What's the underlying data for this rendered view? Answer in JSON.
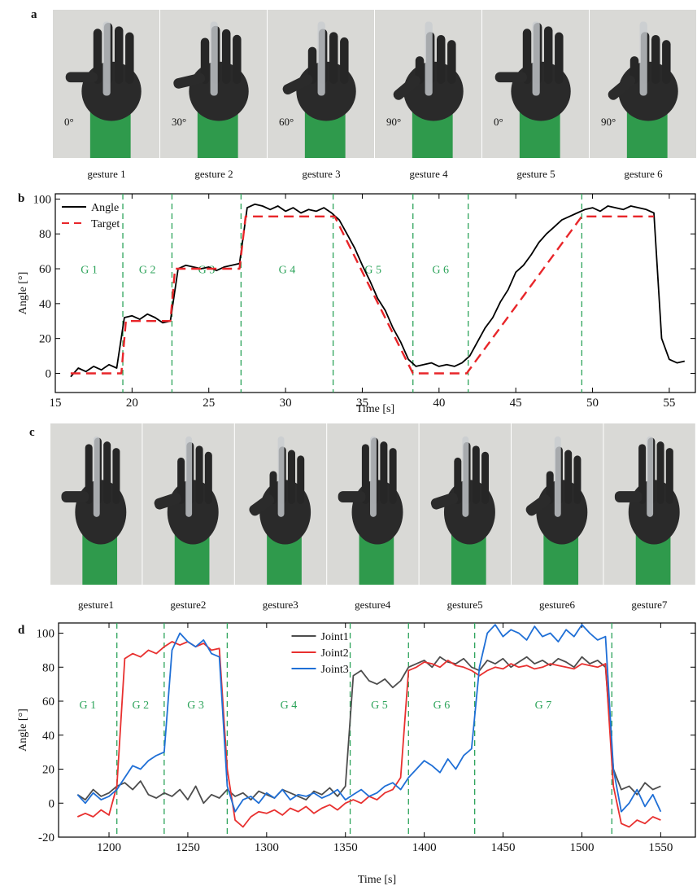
{
  "panels": [
    {
      "label": "a",
      "captions": [
        "gesture 1",
        "gesture 2",
        "gesture 3",
        "gesture 4",
        "gesture 5",
        "gesture 6"
      ],
      "angles": [
        "0°",
        "30°",
        "60°",
        "90°",
        "0°",
        "90°"
      ]
    },
    {
      "label": "b"
    },
    {
      "label": "c",
      "captions": [
        "gesture1",
        "gesture2",
        "gesture3",
        "gesture4",
        "gesture5",
        "gesture6",
        "gesture7"
      ]
    },
    {
      "label": "d"
    }
  ],
  "chart_data": [
    {
      "type": "line",
      "xlabel": "Time [s]",
      "ylabel": "Angle [°]",
      "xlim": [
        15,
        56.7
      ],
      "ylim": [
        -11,
        103
      ],
      "xticks": [
        15,
        20,
        25,
        30,
        35,
        40,
        45,
        50,
        55
      ],
      "yticks": [
        0,
        20,
        40,
        60,
        80,
        100
      ],
      "legend": "upper left",
      "vline_color": "#2ca35a",
      "vlines": [
        19.4,
        22.6,
        27.1,
        33.1,
        38.3,
        41.9,
        49.3
      ],
      "regions": [
        "G 1",
        "G 2",
        "G 3",
        "G 4",
        "G 5",
        "G 6"
      ],
      "series": [
        {
          "name": "Angle",
          "color": "#000000",
          "linestyle": "solid",
          "x": [
            16,
            16.5,
            17,
            17.5,
            18,
            18.5,
            19,
            19.5,
            20,
            20.5,
            21,
            21.5,
            22,
            22.5,
            23,
            23.5,
            24,
            24.5,
            25,
            25.5,
            26,
            26.5,
            27,
            27.5,
            28,
            28.5,
            29,
            29.5,
            30,
            30.5,
            31,
            31.5,
            32,
            32.5,
            33,
            33.5,
            34,
            34.5,
            35,
            35.5,
            36,
            36.5,
            37,
            37.5,
            38,
            38.5,
            39,
            39.5,
            40,
            40.5,
            41,
            41.5,
            42,
            42.5,
            43,
            43.5,
            44,
            44.5,
            45,
            45.5,
            46,
            46.5,
            47,
            47.5,
            48,
            48.5,
            49,
            49.5,
            50,
            50.5,
            51,
            51.5,
            52,
            52.5,
            53,
            53.5,
            54,
            54.5,
            55,
            55.5,
            56
          ],
          "values": [
            -2,
            3,
            1,
            4,
            2,
            5,
            3,
            32,
            33,
            31,
            34,
            32,
            29,
            30,
            60,
            62,
            61,
            60,
            61,
            59,
            61,
            62,
            63,
            95,
            97,
            96,
            94,
            96,
            93,
            95,
            92,
            94,
            93,
            95,
            92,
            88,
            80,
            72,
            62,
            53,
            43,
            36,
            26,
            18,
            8,
            4,
            5,
            6,
            4,
            5,
            4,
            6,
            10,
            18,
            26,
            32,
            41,
            48,
            58,
            62,
            68,
            75,
            80,
            84,
            88,
            90,
            92,
            94,
            95,
            93,
            96,
            95,
            94,
            96,
            95,
            94,
            92,
            20,
            8,
            6,
            7
          ]
        },
        {
          "name": "Target",
          "color": "#e8262a",
          "linestyle": "dashed",
          "x": [
            16,
            19.3,
            19.6,
            22.5,
            22.8,
            27,
            27.4,
            33.2,
            38.3,
            41.8,
            49.3,
            54
          ],
          "values": [
            0,
            0,
            30,
            30,
            60,
            60,
            90,
            90,
            0,
            0,
            90,
            90
          ]
        }
      ]
    },
    {
      "type": "line",
      "xlabel": "Time [s]",
      "ylabel": "Angle [°]",
      "xlim": [
        1168,
        1572
      ],
      "ylim": [
        -20,
        106
      ],
      "xticks": [
        1200,
        1250,
        1300,
        1350,
        1400,
        1450,
        1500,
        1550
      ],
      "yticks": [
        -20,
        0,
        20,
        40,
        60,
        80,
        100
      ],
      "legend": "upper center",
      "vline_color": "#2ca35a",
      "vlines": [
        1205,
        1235,
        1275,
        1353,
        1390,
        1432,
        1519
      ],
      "regions": [
        "G 1",
        "G 2",
        "G 3",
        "G 4",
        "G 5",
        "G 6",
        "G 7"
      ],
      "x": [
        1180,
        1185,
        1190,
        1195,
        1200,
        1205,
        1210,
        1215,
        1220,
        1225,
        1230,
        1235,
        1240,
        1245,
        1250,
        1255,
        1260,
        1265,
        1270,
        1275,
        1280,
        1285,
        1290,
        1295,
        1300,
        1305,
        1310,
        1315,
        1320,
        1325,
        1330,
        1335,
        1340,
        1345,
        1350,
        1355,
        1360,
        1365,
        1370,
        1375,
        1380,
        1385,
        1390,
        1395,
        1400,
        1405,
        1410,
        1415,
        1420,
        1425,
        1430,
        1435,
        1440,
        1445,
        1450,
        1455,
        1460,
        1465,
        1470,
        1475,
        1480,
        1485,
        1490,
        1495,
        1500,
        1505,
        1510,
        1515,
        1520,
        1525,
        1530,
        1535,
        1540,
        1545,
        1550
      ],
      "series": [
        {
          "name": "Joint1",
          "color": "#4d4d4d",
          "linestyle": "solid",
          "values": [
            5,
            2,
            8,
            4,
            6,
            10,
            12,
            8,
            13,
            5,
            3,
            6,
            4,
            8,
            2,
            10,
            0,
            5,
            3,
            8,
            4,
            6,
            2,
            7,
            5,
            3,
            8,
            6,
            4,
            2,
            7,
            5,
            9,
            4,
            10,
            75,
            78,
            72,
            70,
            73,
            68,
            72,
            80,
            82,
            84,
            80,
            86,
            83,
            82,
            85,
            80,
            78,
            84,
            82,
            85,
            80,
            83,
            86,
            82,
            84,
            81,
            85,
            83,
            80,
            86,
            82,
            84,
            80,
            20,
            8,
            10,
            5,
            12,
            8,
            10
          ]
        },
        {
          "name": "Joint2",
          "color": "#e8302f",
          "linestyle": "solid",
          "values": [
            -8,
            -6,
            -8,
            -4,
            -7,
            10,
            85,
            88,
            86,
            90,
            88,
            92,
            95,
            93,
            95,
            92,
            94,
            90,
            91,
            20,
            -10,
            -14,
            -8,
            -5,
            -6,
            -4,
            -7,
            -3,
            -5,
            -2,
            -6,
            -3,
            -1,
            -4,
            0,
            2,
            0,
            4,
            2,
            6,
            8,
            15,
            78,
            80,
            83,
            82,
            80,
            84,
            81,
            80,
            78,
            75,
            78,
            80,
            79,
            82,
            80,
            81,
            79,
            80,
            82,
            81,
            80,
            79,
            82,
            81,
            80,
            82,
            10,
            -12,
            -14,
            -10,
            -12,
            -8,
            -10
          ]
        },
        {
          "name": "Joint3",
          "color": "#1f6fd6",
          "linestyle": "solid",
          "values": [
            5,
            0,
            6,
            2,
            4,
            8,
            15,
            22,
            20,
            25,
            28,
            30,
            90,
            100,
            95,
            92,
            96,
            88,
            86,
            10,
            -5,
            2,
            4,
            0,
            6,
            3,
            8,
            2,
            5,
            4,
            6,
            3,
            5,
            8,
            2,
            5,
            8,
            4,
            6,
            10,
            12,
            8,
            15,
            20,
            25,
            22,
            18,
            26,
            20,
            28,
            32,
            80,
            100,
            105,
            98,
            102,
            100,
            96,
            104,
            98,
            100,
            95,
            102,
            98,
            105,
            100,
            96,
            98,
            20,
            -5,
            0,
            8,
            -2,
            5,
            -5
          ]
        }
      ]
    }
  ]
}
